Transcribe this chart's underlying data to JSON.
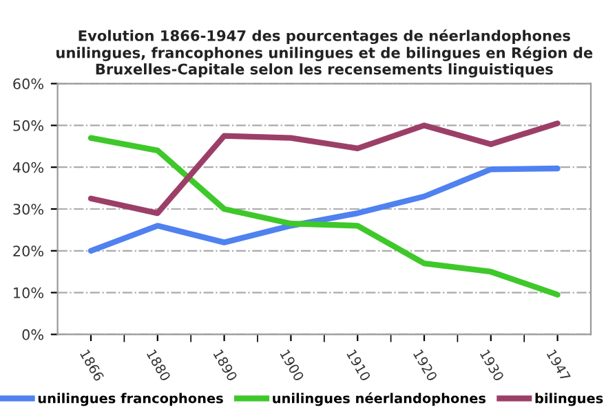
{
  "chart_data": {
    "type": "line",
    "title": "Evolution 1866-1947 des pourcentages de néerlandophones unilingues, francophones unilingues et de bilingues en Région de Bruxelles-Capitale selon les recensements linguistiques",
    "categories": [
      "1866",
      "1880",
      "1890",
      "1900",
      "1910",
      "1920",
      "1930",
      "1947"
    ],
    "series": [
      {
        "name": "unilingues francophones",
        "color": "#4f81f0",
        "values": [
          20,
          26,
          22,
          26,
          29,
          33,
          39.5,
          39.7
        ]
      },
      {
        "name": "unilingues néerlandophones",
        "color": "#3ec82a",
        "values": [
          47,
          44,
          30,
          26.5,
          26,
          17,
          15,
          9.5
        ]
      },
      {
        "name": "bilingues",
        "color": "#9c3f68",
        "values": [
          32.5,
          29,
          47.5,
          47,
          44.5,
          50,
          45.5,
          50.5
        ]
      }
    ],
    "ylim": [
      0,
      60
    ],
    "yticks": [
      {
        "value": 0,
        "label": "0%"
      },
      {
        "value": 10,
        "label": "10%"
      },
      {
        "value": 20,
        "label": "20%"
      },
      {
        "value": 30,
        "label": "30%"
      },
      {
        "value": 40,
        "label": "40%"
      },
      {
        "value": 50,
        "label": "50%"
      },
      {
        "value": 60,
        "label": "60%"
      }
    ],
    "grid": "y",
    "legend": "bottom",
    "marker": "none",
    "line_style": "solid"
  }
}
